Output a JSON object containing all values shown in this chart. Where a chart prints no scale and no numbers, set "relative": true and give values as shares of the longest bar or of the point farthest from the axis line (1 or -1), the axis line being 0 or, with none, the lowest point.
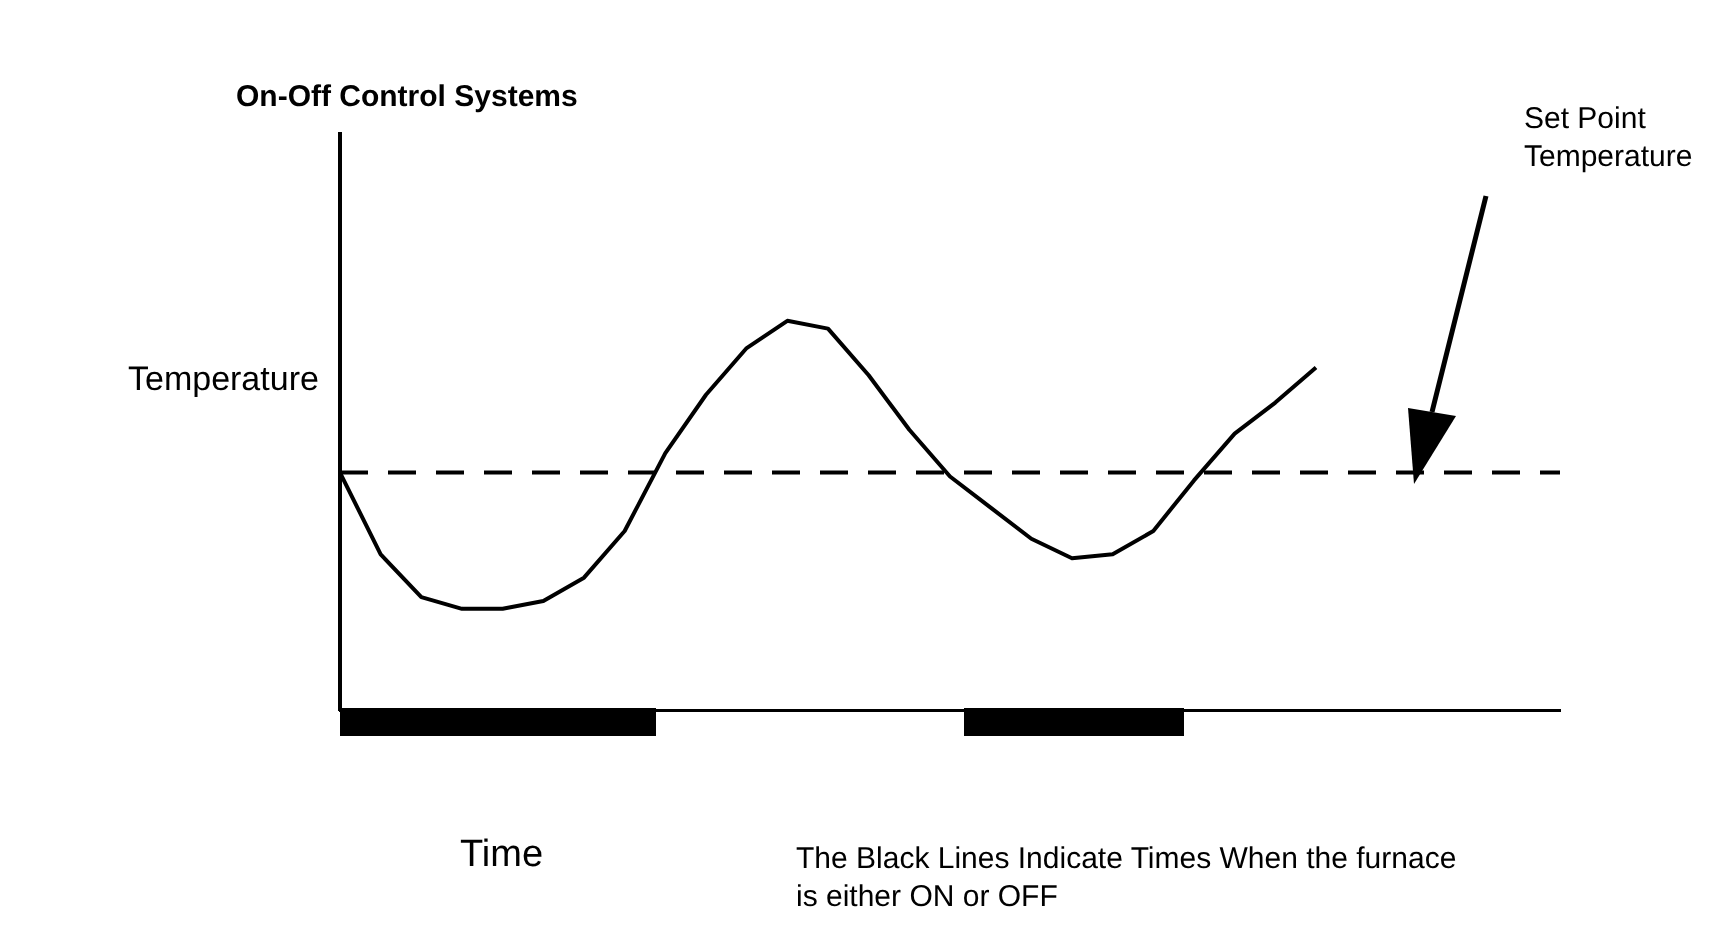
{
  "chart_data": {
    "type": "line",
    "title": "On-Off Control Systems",
    "xlabel": "Time",
    "ylabel": "Temperature",
    "relative": true,
    "grid": false,
    "legend": false,
    "marker": "none",
    "line_style": "solid",
    "categories": [
      null,
      null,
      null,
      null,
      null,
      null,
      null,
      null,
      null,
      null,
      null,
      null,
      null,
      null,
      null,
      null,
      null,
      null,
      null,
      null,
      null,
      null,
      null,
      null,
      null,
      null,
      null,
      null,
      null,
      null,
      null
    ],
    "series": [
      {
        "color": "#000000",
        "values": [
          0.61,
          0.4,
          0.29,
          0.26,
          0.26,
          0.28,
          0.34,
          0.46,
          0.66,
          0.81,
          0.93,
          1,
          0.98,
          0.86,
          0.72,
          0.6,
          0.52,
          0.44,
          0.39,
          0.4,
          0.46,
          0.59,
          0.71,
          0.79,
          0.88,
          null,
          null,
          null,
          null,
          null,
          null
        ]
      }
    ],
    "ref_lines": [
      {
        "axis": "y",
        "value": 0.61,
        "label": "Set Point Temperature",
        "color": "#000000",
        "line_style": "dashed"
      }
    ],
    "annotations": [
      "The Black Lines Indicate Times When the furnace is either ON or OFF"
    ]
  }
}
